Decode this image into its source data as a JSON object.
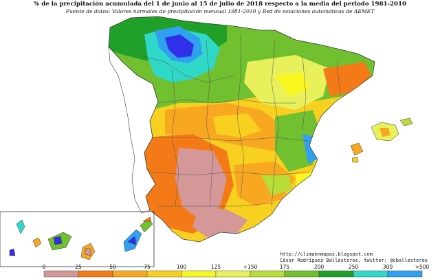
{
  "title": "% de la precipitación acumulada del 1 de junio al 15 de julio de 2018 respecto a la media del periodo 1981-2010",
  "subtitle": "Fuente de datos: Valores normales de precipitación mensual 1981-2010 y Red de estaciones automáticas de AEMET",
  "credits": {
    "url": "http://climaenmapas.blogspot.com",
    "author": "César Rodríguez Ballesteros, twitter: @cballesteros"
  },
  "legend": {
    "tick_labels": [
      "0",
      "25",
      "50",
      "75",
      "100",
      "125",
      "+150",
      "175",
      "200",
      "250",
      "300",
      ">500"
    ],
    "colors": [
      "#d49898",
      "#f47a18",
      "#f8a820",
      "#f8d020",
      "#f8f820",
      "#e8f05c",
      "#b8dc38",
      "#70c030",
      "#20a028",
      "#30d8c8",
      "#30a0f0",
      "#3030e8"
    ]
  },
  "palette": {
    "very_low": "#d49898",
    "low": "#f47a18",
    "mid_low": "#f8a820",
    "below_avg": "#f8d020",
    "avg": "#f8f820",
    "above_avg": "#e8f05c",
    "green_light": "#b8dc38",
    "green": "#70c030",
    "green_dark": "#20a028",
    "cyan": "#30d8c8",
    "blue_light": "#30a0f0",
    "blue": "#3030e8"
  }
}
